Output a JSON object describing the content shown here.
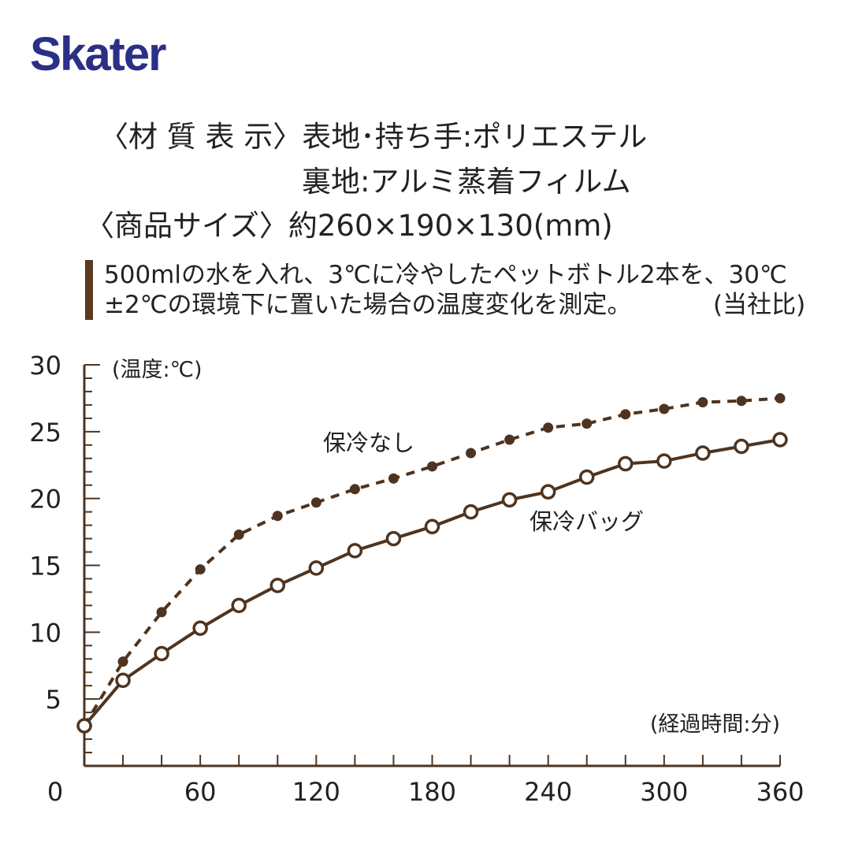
{
  "brand": {
    "logo_text": "Skater",
    "color": "#2b2f86"
  },
  "spec": {
    "line1": "〈材 質 表 示〉表地･持ち手:ポリエステル",
    "line2": "裏地:アルミ蒸着フィルム",
    "line3": "〈商品サイズ〉約260×190×130(mm)"
  },
  "note": {
    "line1": "500mlの水を入れ、3℃に冷やしたペットボトル2本を、30℃",
    "line2": "±2℃の環境下に置いた場合の温度変化を測定。",
    "ref": "(当社比)"
  },
  "chart_data": {
    "type": "line",
    "ylabel": "(温度:℃)",
    "xlabel": "(経過時間:分)",
    "xlim": [
      0,
      360
    ],
    "ylim": [
      0,
      30
    ],
    "x_ticks": [
      0,
      60,
      120,
      180,
      240,
      300,
      360
    ],
    "y_ticks": [
      5,
      10,
      15,
      20,
      25,
      30
    ],
    "x": [
      0,
      20,
      40,
      60,
      80,
      100,
      120,
      140,
      160,
      180,
      200,
      220,
      240,
      260,
      280,
      300,
      320,
      340,
      360
    ],
    "series": [
      {
        "name": "保冷なし",
        "style": "dashed-filled-markers",
        "color": "#4e3420",
        "values": [
          3.0,
          7.8,
          11.5,
          14.7,
          17.3,
          18.7,
          19.7,
          20.7,
          21.5,
          22.4,
          23.4,
          24.4,
          25.3,
          25.6,
          26.3,
          26.7,
          27.2,
          27.3,
          27.5
        ]
      },
      {
        "name": "保冷バッグ",
        "style": "solid-open-markers",
        "color": "#4e3420",
        "values": [
          3.0,
          6.4,
          8.4,
          10.3,
          12.0,
          13.5,
          14.8,
          16.1,
          17.0,
          17.9,
          19.0,
          19.9,
          20.5,
          21.6,
          22.6,
          22.8,
          23.4,
          23.9,
          24.4
        ]
      }
    ]
  }
}
